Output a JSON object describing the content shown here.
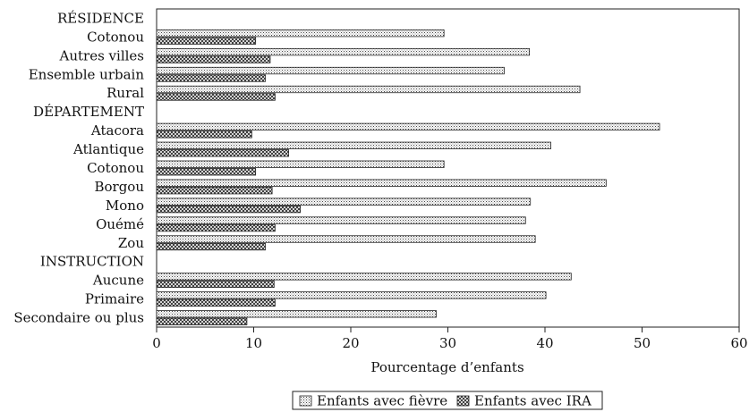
{
  "chart_data": {
    "type": "bar",
    "orientation": "horizontal",
    "categories": [
      {
        "label": "RÉSIDENCE",
        "kind": "header"
      },
      {
        "label": "Cotonou",
        "kind": "data"
      },
      {
        "label": "Autres villes",
        "kind": "data"
      },
      {
        "label": "Ensemble urbain",
        "kind": "data"
      },
      {
        "label": "Rural",
        "kind": "data"
      },
      {
        "label": "DÉPARTEMENT",
        "kind": "header"
      },
      {
        "label": "Atacora",
        "kind": "data"
      },
      {
        "label": "Atlantique",
        "kind": "data"
      },
      {
        "label": "Cotonou",
        "kind": "data"
      },
      {
        "label": "Borgou",
        "kind": "data"
      },
      {
        "label": "Mono",
        "kind": "data"
      },
      {
        "label": "Ouémé",
        "kind": "data"
      },
      {
        "label": "Zou",
        "kind": "data"
      },
      {
        "label": "INSTRUCTION",
        "kind": "header"
      },
      {
        "label": "Aucune",
        "kind": "data"
      },
      {
        "label": "Primaire",
        "kind": "data"
      },
      {
        "label": "Secondaire ou plus",
        "kind": "data"
      }
    ],
    "series": [
      {
        "name": "Enfants avec fièvre",
        "pattern": "dots",
        "values": [
          null,
          29.6,
          38.4,
          35.8,
          43.6,
          null,
          51.8,
          40.6,
          29.6,
          46.3,
          38.5,
          38.0,
          39.0,
          null,
          42.7,
          40.1,
          28.8
        ]
      },
      {
        "name": "Enfants avec IRA",
        "pattern": "crosshatch",
        "values": [
          null,
          10.2,
          11.7,
          11.2,
          12.2,
          null,
          9.8,
          13.6,
          10.2,
          11.9,
          14.8,
          12.2,
          11.2,
          null,
          12.1,
          12.2,
          9.3
        ]
      }
    ],
    "x_ticks": [
      "0",
      "10",
      "20",
      "30",
      "40",
      "50",
      "60"
    ],
    "xlim": [
      0,
      60
    ],
    "xlabel": "Pourcentage d’enfants",
    "legend_position": "bottom",
    "grid": false
  }
}
